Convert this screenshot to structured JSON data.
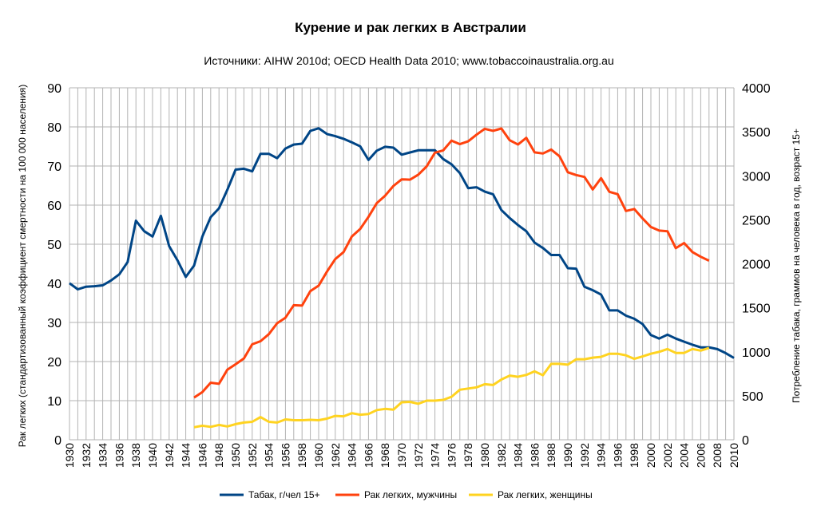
{
  "chart_data": {
    "type": "line",
    "title": "Курение и рак легких в Австралии",
    "subtitle": "Источники: AIHW 2010d; OECD Health Data 2010; www.tobaccoinaustralia.org.au",
    "ylabel_left": "Рак легких (стандартизованный коэффициент смертности на 100 000 населения)",
    "ylabel_right": "Потребление табака, граммов на человека в год, возраст 15+",
    "xlim": [
      1930,
      2010
    ],
    "ylim_left": [
      0,
      90
    ],
    "ylim_right": [
      0,
      4000
    ],
    "x_ticks": [
      "1930",
      "1932",
      "1934",
      "1936",
      "1938",
      "1940",
      "1942",
      "1944",
      "1946",
      "1948",
      "1950",
      "1952",
      "1954",
      "1956",
      "1958",
      "1960",
      "1962",
      "1964",
      "1966",
      "1968",
      "1970",
      "1972",
      "1974",
      "1976",
      "1978",
      "1980",
      "1982",
      "1984",
      "1986",
      "1988",
      "1990",
      "1992",
      "1994",
      "1996",
      "1998",
      "2000",
      "2002",
      "2004",
      "2006",
      "2008",
      "2010"
    ],
    "y_ticks_left": [
      "0",
      "10",
      "20",
      "30",
      "40",
      "50",
      "60",
      "70",
      "80",
      "90"
    ],
    "y_ticks_right": [
      "0",
      "500",
      "1000",
      "1500",
      "2000",
      "2500",
      "3000",
      "3500",
      "4000"
    ],
    "grid": true,
    "legend_position": "bottom",
    "series": [
      {
        "name": "Табак, г/чел 15+",
        "color": "#004586",
        "axis": "right",
        "x": [
          1930,
          1931,
          1932,
          1933,
          1934,
          1935,
          1936,
          1937,
          1938,
          1939,
          1940,
          1941,
          1942,
          1943,
          1944,
          1945,
          1946,
          1947,
          1948,
          1949,
          1950,
          1951,
          1952,
          1953,
          1954,
          1955,
          1956,
          1957,
          1958,
          1959,
          1960,
          1961,
          1962,
          1963,
          1964,
          1965,
          1966,
          1967,
          1968,
          1969,
          1970,
          1971,
          1972,
          1973,
          1974,
          1975,
          1976,
          1977,
          1978,
          1979,
          1980,
          1981,
          1982,
          1983,
          1984,
          1985,
          1986,
          1987,
          1988,
          1989,
          1990,
          1991,
          1992,
          1993,
          1994,
          1995,
          1996,
          1997,
          1998,
          1999,
          2000,
          2001,
          2002,
          2003,
          2004,
          2005,
          2006,
          2007,
          2008,
          2009,
          2010
        ],
        "values": [
          1780,
          1710,
          1740,
          1745,
          1755,
          1810,
          1880,
          2020,
          2490,
          2370,
          2310,
          2545,
          2200,
          2040,
          1850,
          1980,
          2310,
          2530,
          2630,
          2840,
          3070,
          3080,
          3050,
          3250,
          3250,
          3200,
          3310,
          3355,
          3365,
          3510,
          3540,
          3475,
          3450,
          3420,
          3380,
          3335,
          3180,
          3285,
          3330,
          3320,
          3240,
          3265,
          3290,
          3290,
          3290,
          3190,
          3130,
          3030,
          2860,
          2870,
          2820,
          2790,
          2610,
          2520,
          2440,
          2370,
          2240,
          2180,
          2100,
          2100,
          1950,
          1945,
          1740,
          1700,
          1650,
          1470,
          1470,
          1410,
          1375,
          1315,
          1190,
          1150,
          1195,
          1150,
          1115,
          1080,
          1050,
          1050,
          1030,
          985,
          930
        ]
      },
      {
        "name": "Рак легких, мужчины",
        "color": "#ff420e",
        "axis": "left",
        "x": [
          1945,
          1946,
          1947,
          1948,
          1949,
          1950,
          1951,
          1952,
          1953,
          1954,
          1955,
          1956,
          1957,
          1958,
          1959,
          1960,
          1961,
          1962,
          1963,
          1964,
          1965,
          1966,
          1967,
          1968,
          1969,
          1970,
          1971,
          1972,
          1973,
          1974,
          1975,
          1976,
          1977,
          1978,
          1979,
          1980,
          1981,
          1982,
          1983,
          1984,
          1985,
          1986,
          1987,
          1988,
          1989,
          1990,
          1991,
          1992,
          1993,
          1994,
          1995,
          1996,
          1997,
          1998,
          1999,
          2000,
          2001,
          2002,
          2003,
          2004,
          2005,
          2006,
          2007
        ],
        "values": [
          10.8,
          12.2,
          14.6,
          14.3,
          17.9,
          19.3,
          20.8,
          24.4,
          25.2,
          27.0,
          29.8,
          31.2,
          34.4,
          34.3,
          38.0,
          39.4,
          43.0,
          46.2,
          48.0,
          52.0,
          53.9,
          57.0,
          60.5,
          62.4,
          64.9,
          66.6,
          66.5,
          67.8,
          69.9,
          73.4,
          74.0,
          76.5,
          75.6,
          76.3,
          78.0,
          79.5,
          79.0,
          79.6,
          76.6,
          75.5,
          77.2,
          73.5,
          73.2,
          74.2,
          72.5,
          68.4,
          67.7,
          67.2,
          64.0,
          66.9,
          63.4,
          62.8,
          58.5,
          59.0,
          56.6,
          54.4,
          53.5,
          53.3,
          49.0,
          50.3,
          48.0,
          46.8,
          45.8
        ]
      },
      {
        "name": "Рак легких, женщины",
        "color": "#ffd320",
        "axis": "left",
        "x": [
          1945,
          1946,
          1947,
          1948,
          1949,
          1950,
          1951,
          1952,
          1953,
          1954,
          1955,
          1956,
          1957,
          1958,
          1959,
          1960,
          1961,
          1962,
          1963,
          1964,
          1965,
          1966,
          1967,
          1968,
          1969,
          1970,
          1971,
          1972,
          1973,
          1974,
          1975,
          1976,
          1977,
          1978,
          1979,
          1980,
          1981,
          1982,
          1983,
          1984,
          1985,
          1986,
          1987,
          1988,
          1989,
          1990,
          1991,
          1992,
          1993,
          1994,
          1995,
          1996,
          1997,
          1998,
          1999,
          2000,
          2001,
          2002,
          2003,
          2004,
          2005,
          2006,
          2007
        ],
        "values": [
          3.2,
          3.6,
          3.3,
          3.8,
          3.4,
          4.0,
          4.4,
          4.6,
          5.8,
          4.6,
          4.4,
          5.2,
          5.0,
          5.0,
          5.1,
          5.0,
          5.4,
          6.1,
          6.0,
          6.8,
          6.4,
          6.6,
          7.6,
          7.9,
          7.7,
          9.6,
          9.7,
          9.2,
          10.0,
          10.0,
          10.2,
          11.0,
          12.8,
          13.1,
          13.4,
          14.2,
          14.0,
          15.4,
          16.4,
          16.1,
          16.6,
          17.5,
          16.5,
          19.4,
          19.4,
          19.2,
          20.6,
          20.6,
          21.0,
          21.2,
          22.0,
          22.0,
          21.6,
          20.7,
          21.3,
          22.0,
          22.5,
          23.2,
          22.2,
          22.2,
          23.2,
          22.8,
          23.5
        ]
      }
    ]
  }
}
